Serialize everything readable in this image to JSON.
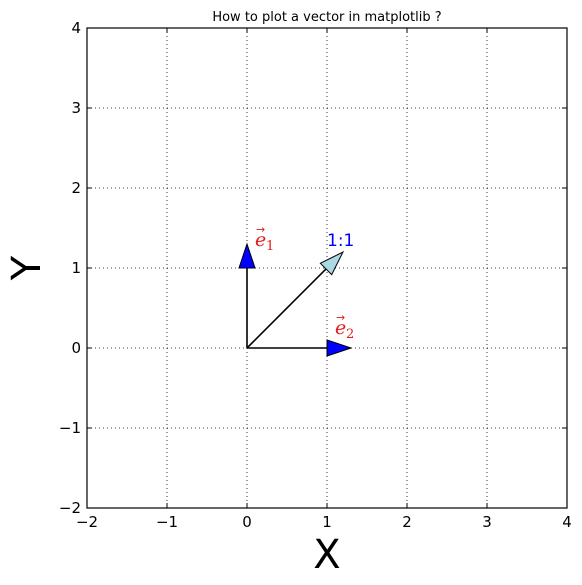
{
  "chart_data": {
    "type": "quiver",
    "title": "How to plot a vector in matplotlib ?",
    "xlabel": "X",
    "ylabel": "Y",
    "xlim": [
      -2,
      4
    ],
    "ylim": [
      -2,
      4
    ],
    "xticks": [
      -2,
      -1,
      0,
      1,
      2,
      3,
      4
    ],
    "yticks": [
      -2,
      -1,
      0,
      1,
      2,
      3,
      4
    ],
    "xtick_labels": [
      "−2",
      "−1",
      "0",
      "1",
      "2",
      "3",
      "4"
    ],
    "ytick_labels": [
      "−2",
      "−1",
      "0",
      "1",
      "2",
      "3",
      "4"
    ],
    "grid": true,
    "grid_style": "dotted",
    "vectors": [
      {
        "id": "e1",
        "x0": 0,
        "y0": 0,
        "dx": 0,
        "dy": 1.3,
        "fill": "#0000ff",
        "label_text": "e",
        "label_sub": "1",
        "label_x": 0.1,
        "label_y": 1.3,
        "label_color": "#e31a1c"
      },
      {
        "id": "e2",
        "x0": 0,
        "y0": 0,
        "dx": 1.3,
        "dy": 0,
        "fill": "#0000ff",
        "label_text": "e",
        "label_sub": "2",
        "label_x": 1.1,
        "label_y": 0.2,
        "label_color": "#e31a1c"
      },
      {
        "id": "diag",
        "x0": 0,
        "y0": 0,
        "dx": 1.2,
        "dy": 1.2,
        "fill": "#add8e6",
        "label_text": "",
        "label_sub": "",
        "label_x": 0,
        "label_y": 0,
        "label_color": "#000000"
      }
    ],
    "annotations": [
      {
        "text": "1:1",
        "x": 1.0,
        "y": 1.3,
        "color": "#0000ff"
      }
    ]
  }
}
